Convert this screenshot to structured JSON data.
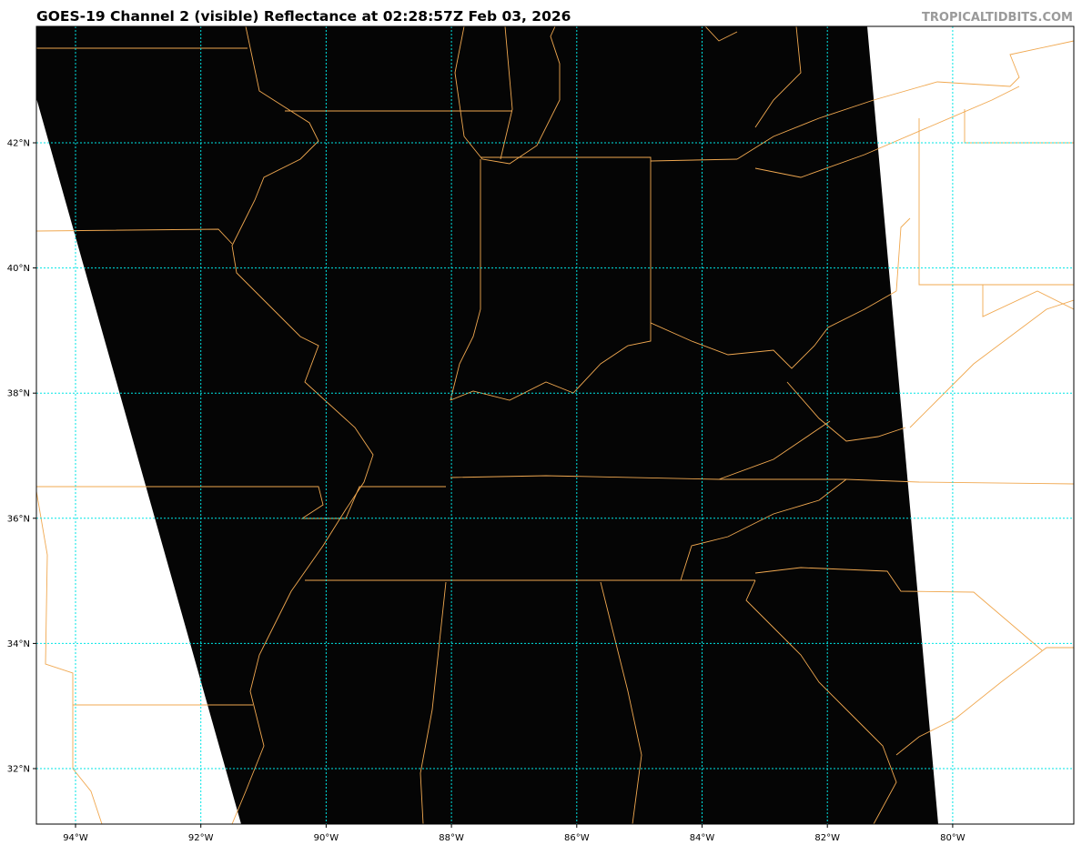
{
  "header": {
    "title": "GOES-19 Channel 2 (visible) Reflectance at 02:28:57Z Feb 03, 2026",
    "credit": "TROPICALTIDBITS.COM"
  },
  "map": {
    "product": "GOES-19 Channel 2 visible reflectance",
    "colors": {
      "imagery": "#050505",
      "no_data": "#ffffff",
      "borders": "#f0a850",
      "gridlines": "#00e5e5"
    },
    "lat_ticks": [
      {
        "value": 42,
        "label": "42°N"
      },
      {
        "value": 40,
        "label": "40°N"
      },
      {
        "value": 38,
        "label": "38°N"
      },
      {
        "value": 36,
        "label": "36°N"
      },
      {
        "value": 34,
        "label": "34°N"
      },
      {
        "value": 32,
        "label": "32°N"
      }
    ],
    "lon_ticks": [
      {
        "value": -94,
        "label": "94°W"
      },
      {
        "value": -92,
        "label": "92°W"
      },
      {
        "value": -90,
        "label": "90°W"
      },
      {
        "value": -88,
        "label": "88°W"
      },
      {
        "value": -86,
        "label": "86°W"
      },
      {
        "value": -84,
        "label": "84°W"
      },
      {
        "value": -82,
        "label": "82°W"
      },
      {
        "value": -80,
        "label": "80°W"
      }
    ]
  }
}
